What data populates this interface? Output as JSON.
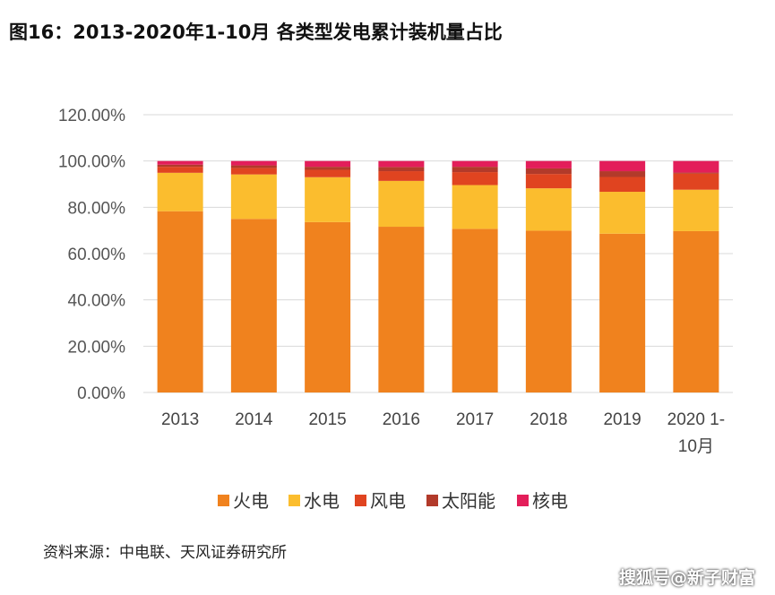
{
  "title": "图16：2013-2020年1-10月 各类型发电累计装机量占比",
  "source": "资料来源：中电联、天风证券研究所",
  "watermark": "搜狐号@新子财富",
  "chart_data": {
    "type": "bar",
    "stacked": true,
    "categories": [
      "2013",
      "2014",
      "2015",
      "2016",
      "2017",
      "2018",
      "2019",
      "2020 1-10月"
    ],
    "category_lines": [
      [
        "2013"
      ],
      [
        "2014"
      ],
      [
        "2015"
      ],
      [
        "2016"
      ],
      [
        "2017"
      ],
      [
        "2018"
      ],
      [
        "2019"
      ],
      [
        "2020 1-",
        "10月"
      ]
    ],
    "ylim": [
      0,
      120
    ],
    "yticks": [
      0,
      20,
      40,
      60,
      80,
      100,
      120
    ],
    "ytick_labels": [
      "0.00%",
      "20.00%",
      "40.00%",
      "60.00%",
      "80.00%",
      "100.00%",
      "120.00%"
    ],
    "grid": true,
    "legend_position": "bottom",
    "series": [
      {
        "name": "火电",
        "color": "#F0821E",
        "values": [
          78.3,
          75.0,
          73.6,
          71.6,
          70.7,
          69.9,
          68.6,
          69.7
        ]
      },
      {
        "name": "水电",
        "color": "#FBBD2E",
        "values": [
          16.6,
          19.2,
          19.4,
          19.8,
          18.9,
          18.3,
          18.1,
          17.9
        ]
      },
      {
        "name": "风电",
        "color": "#E04420",
        "values": [
          2.6,
          2.8,
          3.2,
          4.2,
          5.6,
          6.2,
          6.4,
          7.0
        ]
      },
      {
        "name": "太阳能",
        "color": "#B23A2A",
        "values": [
          0.9,
          1.1,
          1.3,
          1.8,
          2.3,
          2.4,
          2.5,
          0.4
        ]
      },
      {
        "name": "核电",
        "color": "#E31E5A",
        "values": [
          1.6,
          1.9,
          2.5,
          2.6,
          2.5,
          3.2,
          4.4,
          5.0
        ]
      }
    ]
  }
}
